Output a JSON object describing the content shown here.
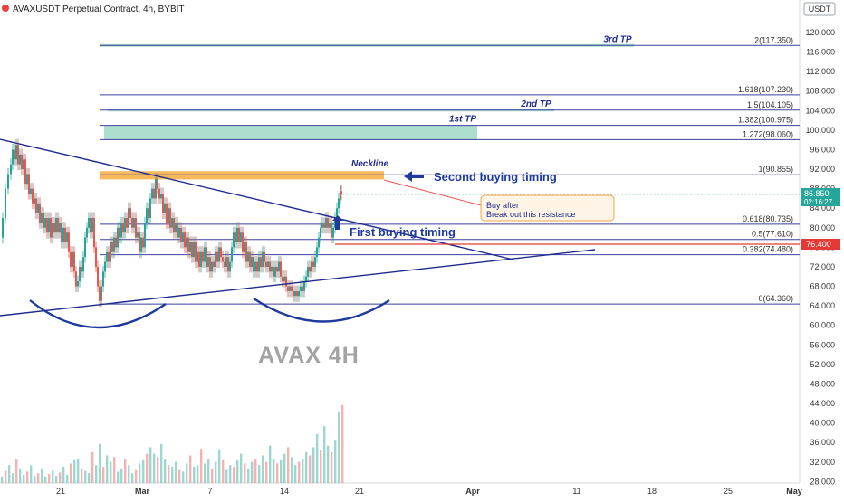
{
  "header": {
    "title": "AVAXUSDT Perpetual Contract, 4h, BYBIT",
    "currency": "USDT"
  },
  "colors": {
    "up": "#26a69a",
    "down": "#ef5350",
    "line": "#1e2a8c",
    "fib": "#3b3fa0",
    "tp_band": "#9fd9c6",
    "neckline_band": "#f7b04a",
    "red_line": "#e53935",
    "axis_text": "#333333"
  },
  "chart_data": {
    "type": "candlestick",
    "price_axis": {
      "ticks": [
        "120.000",
        "116.000",
        "112.000",
        "108.000",
        "104.000",
        "100.000",
        "96.000",
        "92.000",
        "88.000",
        "84.000",
        "80.000",
        "76.000",
        "72.000",
        "68.000",
        "64.000",
        "60.000",
        "56.000",
        "52.000",
        "48.000",
        "44.000",
        "40.000",
        "36.000",
        "32.000",
        "28.000"
      ],
      "range": [
        27,
        124
      ],
      "last_price": "86.850",
      "countdown": "02:16:27",
      "marker_price": "76.400"
    },
    "time_axis": {
      "ticks": [
        "21",
        "Mar",
        "7",
        "14",
        "21",
        "Apr",
        "11",
        "18",
        "25",
        "May"
      ]
    },
    "fib_levels": [
      {
        "label": "2(117.350)",
        "value": 117.35
      },
      {
        "label": "1.618(107.230)",
        "value": 107.23
      },
      {
        "label": "1.5(104.105)",
        "value": 104.105
      },
      {
        "label": "1.382(100.975)",
        "value": 100.975
      },
      {
        "label": "1.272(98.060)",
        "value": 98.06
      },
      {
        "label": "1(90.855)",
        "value": 90.855
      },
      {
        "label": "0.618(80.735)",
        "value": 80.735
      },
      {
        "label": "0.5(77.610)",
        "value": 77.61
      },
      {
        "label": "0.382(74.480)",
        "value": 74.48
      },
      {
        "label": "0(64.360)",
        "value": 64.36
      }
    ],
    "targets": [
      {
        "label": "1st TP",
        "low": 98.06,
        "high": 100.975
      },
      {
        "label": "2nd TP",
        "low": 104.105,
        "high": 104.105
      },
      {
        "label": "3rd TP",
        "low": 117.35,
        "high": 117.35
      }
    ],
    "annotations": {
      "neckline": "Neckline",
      "second_buy": "Second buying timing",
      "first_buy": "First buying timing",
      "callout_line1": "Buy after",
      "callout_line2": "Break out this resistance",
      "watermark": "AVAX 4H"
    },
    "close_path": [
      [
        0,
        78
      ],
      [
        3,
        82
      ],
      [
        6,
        88
      ],
      [
        9,
        91
      ],
      [
        12,
        93
      ],
      [
        14,
        96
      ],
      [
        16,
        94
      ],
      [
        18,
        97
      ],
      [
        20,
        93
      ],
      [
        22,
        95
      ],
      [
        24,
        92
      ],
      [
        26,
        94
      ],
      [
        28,
        89
      ],
      [
        30,
        91
      ],
      [
        32,
        87
      ],
      [
        34,
        88
      ],
      [
        36,
        85
      ],
      [
        38,
        86
      ],
      [
        40,
        83
      ],
      [
        42,
        85
      ],
      [
        44,
        81
      ],
      [
        46,
        83
      ],
      [
        48,
        80
      ],
      [
        50,
        82
      ],
      [
        52,
        79
      ],
      [
        54,
        82
      ],
      [
        56,
        78
      ],
      [
        58,
        81
      ],
      [
        60,
        79
      ],
      [
        62,
        82
      ],
      [
        64,
        79
      ],
      [
        66,
        81
      ],
      [
        68,
        77
      ],
      [
        70,
        80
      ],
      [
        72,
        77
      ],
      [
        74,
        79
      ],
      [
        76,
        75
      ],
      [
        78,
        72
      ],
      [
        80,
        75
      ],
      [
        82,
        71
      ],
      [
        84,
        68
      ],
      [
        86,
        69
      ],
      [
        88,
        72
      ],
      [
        90,
        71
      ],
      [
        92,
        74
      ],
      [
        94,
        78
      ],
      [
        96,
        80
      ],
      [
        98,
        82
      ],
      [
        100,
        79
      ],
      [
        102,
        82
      ],
      [
        104,
        76
      ],
      [
        106,
        72
      ],
      [
        108,
        68
      ],
      [
        110,
        65
      ],
      [
        112,
        68
      ],
      [
        114,
        71
      ],
      [
        116,
        73
      ],
      [
        118,
        75
      ],
      [
        120,
        73
      ],
      [
        122,
        77
      ],
      [
        124,
        75
      ],
      [
        126,
        78
      ],
      [
        128,
        76
      ],
      [
        130,
        80
      ],
      [
        132,
        78
      ],
      [
        134,
        81
      ],
      [
        136,
        79
      ],
      [
        138,
        82
      ],
      [
        140,
        80
      ],
      [
        142,
        84
      ],
      [
        144,
        82
      ],
      [
        146,
        80
      ],
      [
        148,
        82
      ],
      [
        150,
        78
      ],
      [
        152,
        79
      ],
      [
        154,
        75
      ],
      [
        156,
        78
      ],
      [
        158,
        76
      ],
      [
        160,
        81
      ],
      [
        162,
        84
      ],
      [
        164,
        82
      ],
      [
        166,
        86
      ],
      [
        168,
        88
      ],
      [
        170,
        86
      ],
      [
        172,
        90
      ],
      [
        174,
        88
      ],
      [
        176,
        86
      ],
      [
        178,
        87
      ],
      [
        180,
        83
      ],
      [
        182,
        85
      ],
      [
        184,
        81
      ],
      [
        186,
        84
      ],
      [
        188,
        80
      ],
      [
        190,
        82
      ],
      [
        192,
        79
      ],
      [
        194,
        81
      ],
      [
        196,
        78
      ],
      [
        198,
        80
      ],
      [
        200,
        77
      ],
      [
        202,
        79
      ],
      [
        204,
        76
      ],
      [
        206,
        78
      ],
      [
        208,
        75
      ],
      [
        210,
        77
      ],
      [
        212,
        74
      ],
      [
        214,
        77
      ],
      [
        216,
        73
      ],
      [
        218,
        75
      ],
      [
        220,
        72
      ],
      [
        222,
        75
      ],
      [
        224,
        73
      ],
      [
        226,
        76
      ],
      [
        228,
        72
      ],
      [
        230,
        74
      ],
      [
        232,
        71
      ],
      [
        234,
        73
      ],
      [
        236,
        72
      ],
      [
        238,
        75
      ],
      [
        240,
        73
      ],
      [
        242,
        76
      ],
      [
        244,
        74
      ],
      [
        246,
        73
      ],
      [
        248,
        72
      ],
      [
        250,
        74
      ],
      [
        252,
        71
      ],
      [
        254,
        73
      ],
      [
        256,
        76
      ],
      [
        258,
        79
      ],
      [
        260,
        77
      ],
      [
        262,
        80
      ],
      [
        264,
        77
      ],
      [
        266,
        79
      ],
      [
        268,
        75
      ],
      [
        270,
        77
      ],
      [
        272,
        73
      ],
      [
        274,
        75
      ],
      [
        276,
        72
      ],
      [
        278,
        74
      ],
      [
        280,
        71
      ],
      [
        282,
        73
      ],
      [
        284,
        71
      ],
      [
        286,
        74
      ],
      [
        288,
        72
      ],
      [
        290,
        75
      ],
      [
        292,
        73
      ],
      [
        294,
        72
      ],
      [
        296,
        73
      ],
      [
        298,
        71
      ],
      [
        300,
        72
      ],
      [
        302,
        70
      ],
      [
        304,
        72
      ],
      [
        306,
        71
      ],
      [
        308,
        73
      ],
      [
        310,
        70
      ],
      [
        312,
        69
      ],
      [
        314,
        70
      ],
      [
        316,
        68
      ],
      [
        318,
        67
      ],
      [
        320,
        68
      ],
      [
        322,
        67
      ],
      [
        324,
        66
      ],
      [
        326,
        67
      ],
      [
        328,
        66
      ],
      [
        330,
        67
      ],
      [
        332,
        68
      ],
      [
        334,
        67
      ],
      [
        336,
        69
      ],
      [
        338,
        70
      ],
      [
        340,
        72
      ],
      [
        342,
        71
      ],
      [
        344,
        73
      ],
      [
        346,
        72
      ],
      [
        348,
        74
      ],
      [
        350,
        76
      ],
      [
        352,
        78
      ],
      [
        354,
        80
      ],
      [
        356,
        81
      ],
      [
        358,
        80
      ],
      [
        360,
        82
      ],
      [
        362,
        80
      ],
      [
        364,
        81
      ],
      [
        366,
        78
      ],
      [
        368,
        80
      ],
      [
        370,
        82
      ],
      [
        372,
        84
      ],
      [
        374,
        86
      ],
      [
        376,
        87.5
      ],
      [
        377,
        86.85
      ]
    ],
    "volume_path": [
      [
        0,
        8
      ],
      [
        4,
        15
      ],
      [
        8,
        22
      ],
      [
        12,
        12
      ],
      [
        16,
        30
      ],
      [
        20,
        18
      ],
      [
        24,
        10
      ],
      [
        28,
        14
      ],
      [
        32,
        22
      ],
      [
        36,
        9
      ],
      [
        40,
        12
      ],
      [
        44,
        18
      ],
      [
        48,
        8
      ],
      [
        52,
        11
      ],
      [
        56,
        15
      ],
      [
        60,
        9
      ],
      [
        64,
        13
      ],
      [
        68,
        20
      ],
      [
        72,
        10
      ],
      [
        76,
        24
      ],
      [
        80,
        28
      ],
      [
        84,
        30
      ],
      [
        88,
        18
      ],
      [
        92,
        15
      ],
      [
        96,
        12
      ],
      [
        100,
        38
      ],
      [
        104,
        22
      ],
      [
        108,
        48
      ],
      [
        112,
        20
      ],
      [
        116,
        34
      ],
      [
        120,
        26
      ],
      [
        124,
        32
      ],
      [
        128,
        14
      ],
      [
        132,
        18
      ],
      [
        136,
        30
      ],
      [
        140,
        22
      ],
      [
        144,
        12
      ],
      [
        148,
        16
      ],
      [
        152,
        24
      ],
      [
        156,
        28
      ],
      [
        160,
        36
      ],
      [
        164,
        44
      ],
      [
        168,
        36
      ],
      [
        172,
        32
      ],
      [
        176,
        48
      ],
      [
        180,
        30
      ],
      [
        184,
        22
      ],
      [
        188,
        20
      ],
      [
        192,
        26
      ],
      [
        196,
        16
      ],
      [
        200,
        14
      ],
      [
        204,
        24
      ],
      [
        208,
        34
      ],
      [
        212,
        20
      ],
      [
        216,
        22
      ],
      [
        220,
        42
      ],
      [
        224,
        24
      ],
      [
        228,
        30
      ],
      [
        232,
        18
      ],
      [
        236,
        26
      ],
      [
        240,
        40
      ],
      [
        244,
        28
      ],
      [
        248,
        16
      ],
      [
        252,
        22
      ],
      [
        256,
        20
      ],
      [
        260,
        28
      ],
      [
        264,
        36
      ],
      [
        268,
        24
      ],
      [
        272,
        18
      ],
      [
        276,
        26
      ],
      [
        280,
        30
      ],
      [
        284,
        22
      ],
      [
        288,
        34
      ],
      [
        292,
        26
      ],
      [
        296,
        46
      ],
      [
        300,
        30
      ],
      [
        304,
        24
      ],
      [
        308,
        28
      ],
      [
        312,
        36
      ],
      [
        316,
        44
      ],
      [
        320,
        32
      ],
      [
        324,
        22
      ],
      [
        328,
        26
      ],
      [
        332,
        30
      ],
      [
        336,
        38
      ],
      [
        340,
        34
      ],
      [
        344,
        44
      ],
      [
        348,
        60
      ],
      [
        352,
        40
      ],
      [
        356,
        70
      ],
      [
        360,
        46
      ],
      [
        364,
        38
      ],
      [
        368,
        52
      ],
      [
        372,
        88
      ],
      [
        376,
        96
      ]
    ]
  }
}
